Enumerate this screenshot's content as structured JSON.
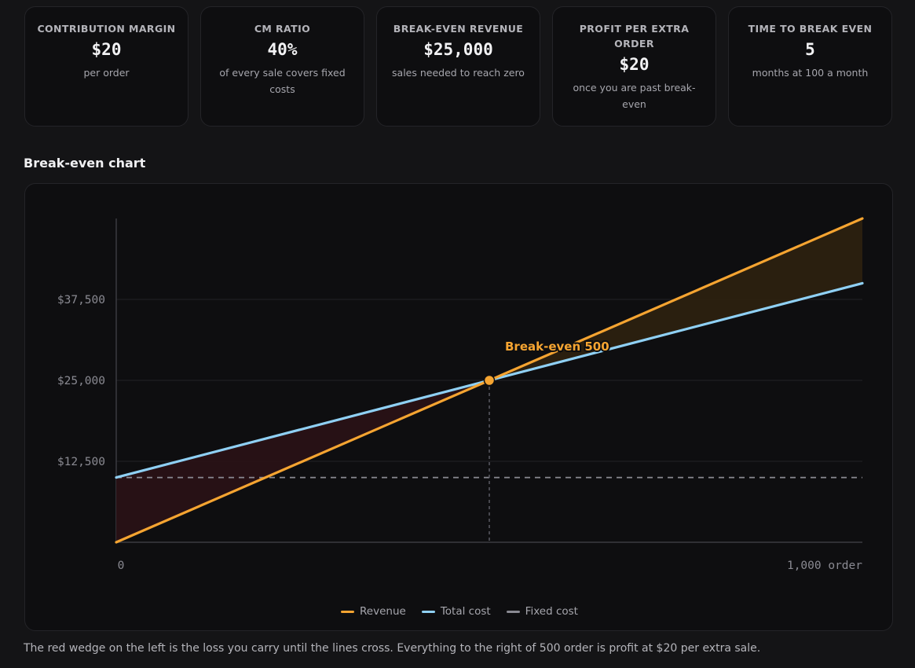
{
  "cards": [
    {
      "title": "CONTRIBUTION MARGIN",
      "value": "$20",
      "sub": "per order"
    },
    {
      "title": "CM RATIO",
      "value": "40%",
      "sub": "of every sale covers fixed costs"
    },
    {
      "title": "BREAK-EVEN REVENUE",
      "value": "$25,000",
      "sub": "sales needed to reach zero"
    },
    {
      "title": "PROFIT PER EXTRA ORDER",
      "value": "$20",
      "sub": "once you are past break-even"
    },
    {
      "title": "TIME TO BREAK EVEN",
      "value": "5",
      "sub": "months at 100 a month"
    }
  ],
  "section_title": "Break-even chart",
  "chart_data": {
    "type": "line",
    "x": [
      0,
      1000
    ],
    "xlim": [
      0,
      1000
    ],
    "ylim": [
      0,
      50000
    ],
    "x_tick_labels": [
      "0",
      "1,000 order"
    ],
    "y_ticks": [
      12500,
      25000,
      37500
    ],
    "y_tick_labels": [
      "$12,500",
      "$25,000",
      "$37,500"
    ],
    "series": [
      {
        "name": "Revenue",
        "values": [
          0,
          50000
        ],
        "color": "#f5a431"
      },
      {
        "name": "Total cost",
        "values": [
          10000,
          40000
        ],
        "color": "#8fd0f4"
      },
      {
        "name": "Fixed cost",
        "values": [
          10000,
          10000
        ],
        "color": "#8a8a92",
        "dashed": true
      }
    ],
    "break_even": {
      "x": 500,
      "y": 25000,
      "label": "Break-even 500"
    },
    "loss_fill_color": "#2a1216",
    "profit_fill_color": "#2e210f",
    "grid": true,
    "legend_position": "bottom-center"
  },
  "note": "The red wedge on the left is the loss you carry until the lines cross. Everything to the right of 500 order is profit at $20 per extra sale."
}
